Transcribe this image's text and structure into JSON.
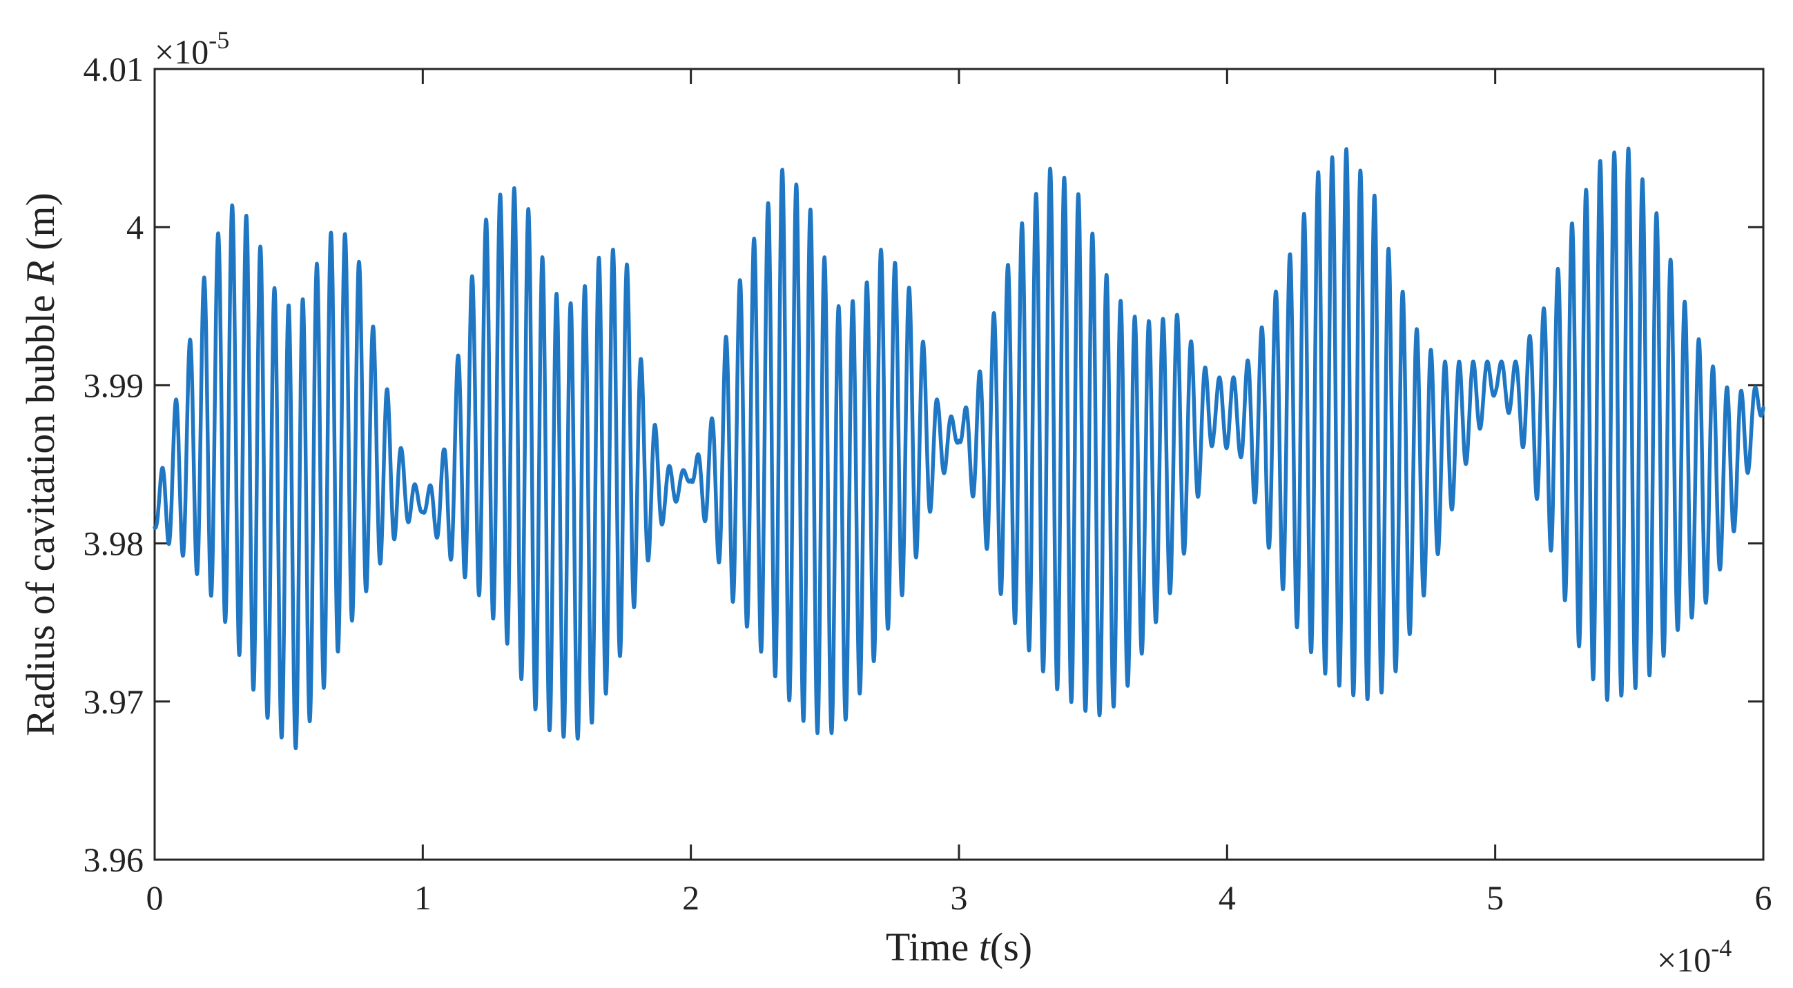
{
  "chart_data": {
    "type": "line",
    "title": "",
    "xlabel": {
      "prefix": "Time ",
      "var": "t",
      "suffix": "(s)"
    },
    "ylabel": {
      "prefix": "Radius of cavitation bubble ",
      "var": "R",
      "suffix": " (m)"
    },
    "xlim": [
      0,
      6
    ],
    "ylim": [
      3.96,
      4.01
    ],
    "x_ticks": [
      0,
      1,
      2,
      3,
      4,
      5,
      6
    ],
    "x_tick_labels": [
      "0",
      "1",
      "2",
      "3",
      "4",
      "5",
      "6"
    ],
    "y_ticks": [
      3.96,
      3.97,
      3.98,
      3.99,
      4.0,
      4.01
    ],
    "y_tick_labels": [
      "3.96",
      "3.97",
      "3.98",
      "3.99",
      "4",
      "4.01"
    ],
    "x_multiplier": {
      "base": "×10",
      "exp": "-4"
    },
    "y_multiplier": {
      "base": "×10",
      "exp": "-5"
    },
    "grid": false,
    "line_color": "#1f77c4",
    "series": [
      {
        "name": "",
        "envelope_x": [
          0,
          0.05,
          0.12,
          0.2,
          0.28,
          0.36,
          0.45,
          0.53,
          0.6,
          0.68,
          0.76,
          0.85,
          0.92,
          1.0,
          1.08,
          1.15,
          1.22,
          1.32,
          1.4,
          1.48,
          1.57,
          1.65,
          1.75,
          1.82,
          1.9,
          2.0,
          2.08,
          2.15,
          2.25,
          2.35,
          2.45,
          2.55,
          2.63,
          2.72,
          2.82,
          2.92,
          3.0,
          3.08,
          3.15,
          3.25,
          3.35,
          3.45,
          3.55,
          3.63,
          3.72,
          3.82,
          3.9,
          3.95,
          4.05,
          4.15,
          4.25,
          4.35,
          4.45,
          4.55,
          4.62,
          4.72,
          4.8,
          4.9,
          5.0,
          5.08,
          5.2,
          5.3,
          5.4,
          5.5,
          5.6,
          5.68,
          5.78,
          5.88,
          6.0
        ],
        "envelope_upper": [
          3.982,
          3.987,
          3.992,
          3.998,
          4.0015,
          4.0005,
          3.996,
          3.9945,
          3.9975,
          4.0005,
          3.998,
          3.991,
          3.986,
          3.9825,
          3.986,
          3.994,
          4.0,
          4.003,
          4.001,
          3.996,
          3.995,
          3.998,
          3.999,
          3.991,
          3.985,
          3.9845,
          3.988,
          3.995,
          4.0,
          4.004,
          4.001,
          3.995,
          3.9955,
          3.999,
          3.996,
          3.989,
          3.9875,
          3.991,
          3.996,
          4.001,
          4.004,
          4.002,
          3.997,
          3.9945,
          3.994,
          3.9945,
          3.9915,
          3.9905,
          3.9905,
          3.9945,
          3.999,
          4.004,
          4.005,
          4.002,
          3.9975,
          3.993,
          3.9915,
          3.9915,
          3.9915,
          3.9915,
          3.9955,
          4.001,
          4.0045,
          4.005,
          4.001,
          3.9965,
          3.992,
          3.9895,
          3.99
        ],
        "envelope_lower": [
          3.981,
          3.98,
          3.979,
          3.977,
          3.9745,
          3.971,
          3.968,
          3.967,
          3.9695,
          3.973,
          3.976,
          3.979,
          3.981,
          3.982,
          3.9795,
          3.978,
          3.9765,
          3.9735,
          3.97,
          3.968,
          3.9675,
          3.969,
          3.9735,
          3.978,
          3.9815,
          3.984,
          3.98,
          3.9765,
          3.9735,
          3.9705,
          3.968,
          3.968,
          3.9705,
          3.974,
          3.978,
          3.9835,
          3.9865,
          3.981,
          3.977,
          3.9735,
          3.971,
          3.9695,
          3.969,
          3.971,
          3.9745,
          3.978,
          3.9835,
          3.9865,
          3.9855,
          3.98,
          3.975,
          3.972,
          3.9705,
          3.97,
          3.9715,
          3.976,
          3.98,
          3.9855,
          3.9895,
          3.9875,
          3.98,
          3.974,
          3.97,
          3.9705,
          3.972,
          3.9745,
          3.976,
          3.98,
          3.9885
        ]
      }
    ]
  }
}
